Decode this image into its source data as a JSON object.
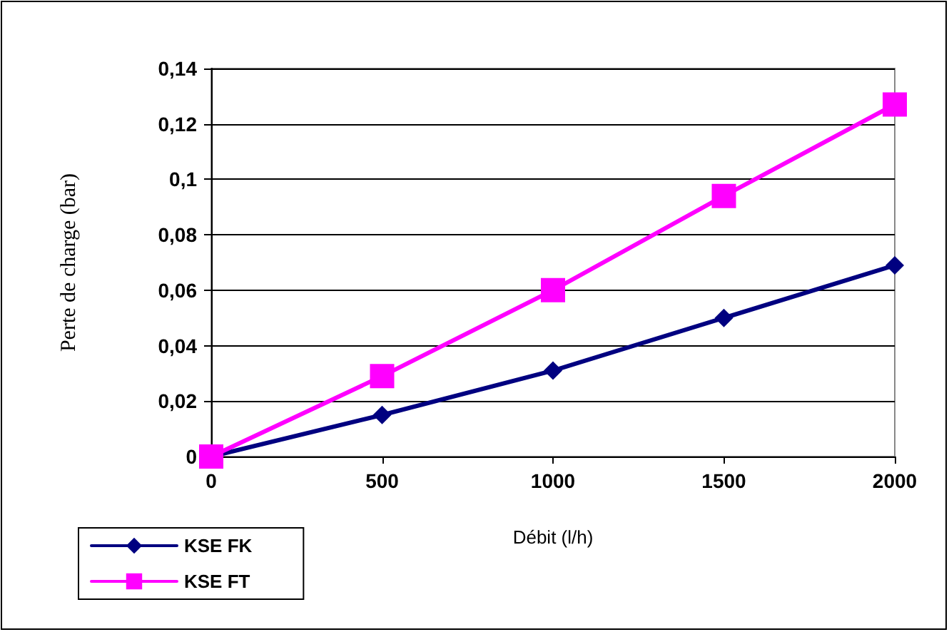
{
  "chart_data": {
    "type": "line",
    "xlabel": "Débit (l/h)",
    "ylabel": "Perte de charge (bar)",
    "x": [
      0,
      500,
      1000,
      1500,
      2000
    ],
    "series": [
      {
        "name": "KSE FK",
        "color": "#000080",
        "marker": "diamond",
        "values": [
          0,
          0.015,
          0.031,
          0.05,
          0.069
        ]
      },
      {
        "name": "KSE FT",
        "color": "#ff00ff",
        "marker": "square",
        "values": [
          0,
          0.029,
          0.06,
          0.094,
          0.127
        ]
      }
    ],
    "xlim": [
      0,
      2000
    ],
    "xticks": [
      0,
      500,
      1000,
      1500,
      2000
    ],
    "ylim": [
      0,
      0.14
    ],
    "yticks": [
      0,
      {
        "value": 0.02,
        "label": "0,02"
      },
      {
        "value": 0.04,
        "label": "0,04"
      },
      {
        "value": 0.06,
        "label": "0,06"
      },
      {
        "value": 0.08,
        "label": "0,08"
      },
      {
        "value": 0.1,
        "label": "0,1"
      },
      {
        "value": 0.12,
        "label": "0,12"
      },
      {
        "value": 0.14,
        "label": "0,14"
      }
    ],
    "grid": "y",
    "legend": "bottom left",
    "line_style": "solid"
  }
}
